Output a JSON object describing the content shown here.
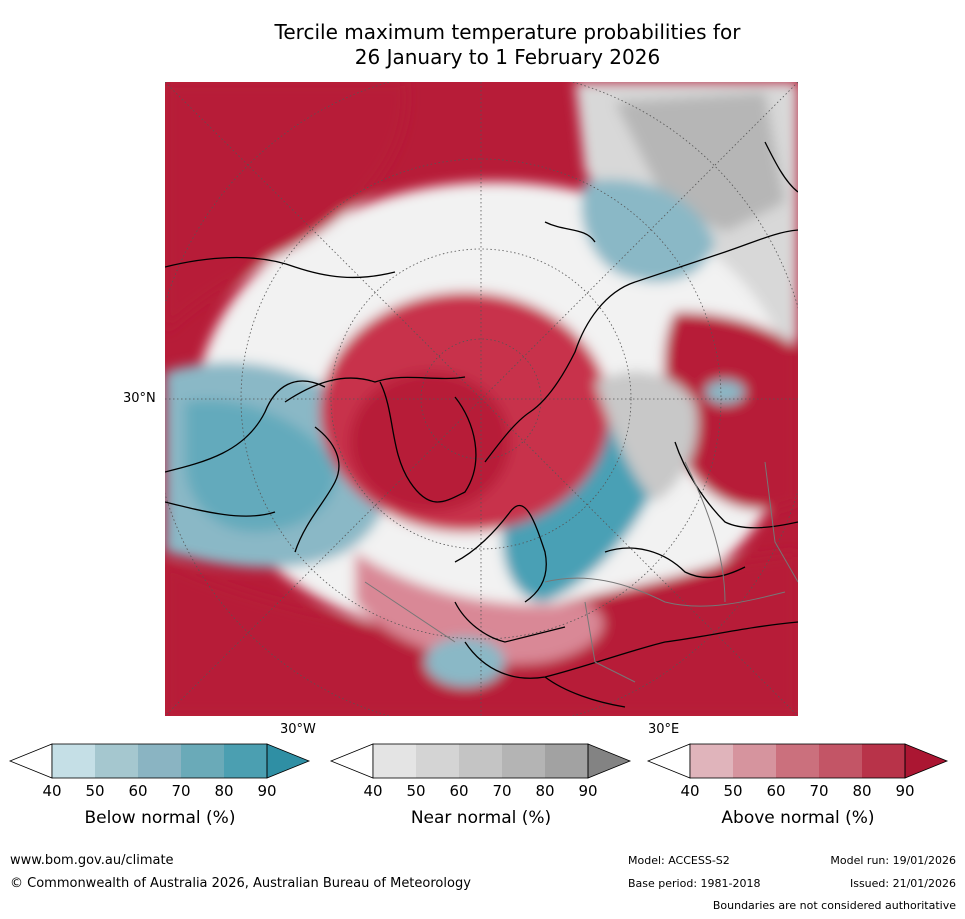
{
  "title": {
    "line1": "Tercile maximum temperature probabilities for",
    "line2": "26 January to 1 February 2026"
  },
  "map": {
    "lat_label": "30°N",
    "lon_labels": [
      "30°W",
      "30°E"
    ],
    "colors": {
      "warm": "#b71c38",
      "warm2": "#c85468",
      "warm3": "#d98896",
      "cool": "#4aa0b5",
      "cool2": "#8ab8c6",
      "cool3": "#c5dde5",
      "near": "#d4d4d4",
      "near2": "#a8a8a8"
    }
  },
  "colorbars": [
    {
      "title": "Below normal (%)",
      "ticks": [
        "40",
        "50",
        "60",
        "70",
        "80",
        "90"
      ],
      "colors": [
        "#ffffff",
        "#c5dfe6",
        "#a5c7cf",
        "#8ab4c2",
        "#6aaab8",
        "#4b9fb1",
        "#2f8fa4"
      ]
    },
    {
      "title": "Near normal (%)",
      "ticks": [
        "40",
        "50",
        "60",
        "70",
        "80",
        "90"
      ],
      "colors": [
        "#ffffff",
        "#e4e4e4",
        "#d4d4d4",
        "#c4c4c4",
        "#b4b4b4",
        "#a2a2a2",
        "#838383"
      ]
    },
    {
      "title": "Above normal (%)",
      "ticks": [
        "40",
        "50",
        "60",
        "70",
        "80",
        "90"
      ],
      "colors": [
        "#ffffff",
        "#e0b4bb",
        "#d6949e",
        "#cb707d",
        "#c35566",
        "#b83349",
        "#ab1632"
      ]
    }
  ],
  "footer": {
    "website": "www.bom.gov.au/climate",
    "copyright": "© Commonwealth of Australia 2026, Australian Bureau of Meteorology",
    "model": "Model: ACCESS-S2",
    "base_period": "Base period: 1981-2018",
    "model_run": "Model run: 19/01/2026",
    "issued": "Issued: 21/01/2026",
    "disclaimer": "Boundaries are not considered authoritative"
  }
}
